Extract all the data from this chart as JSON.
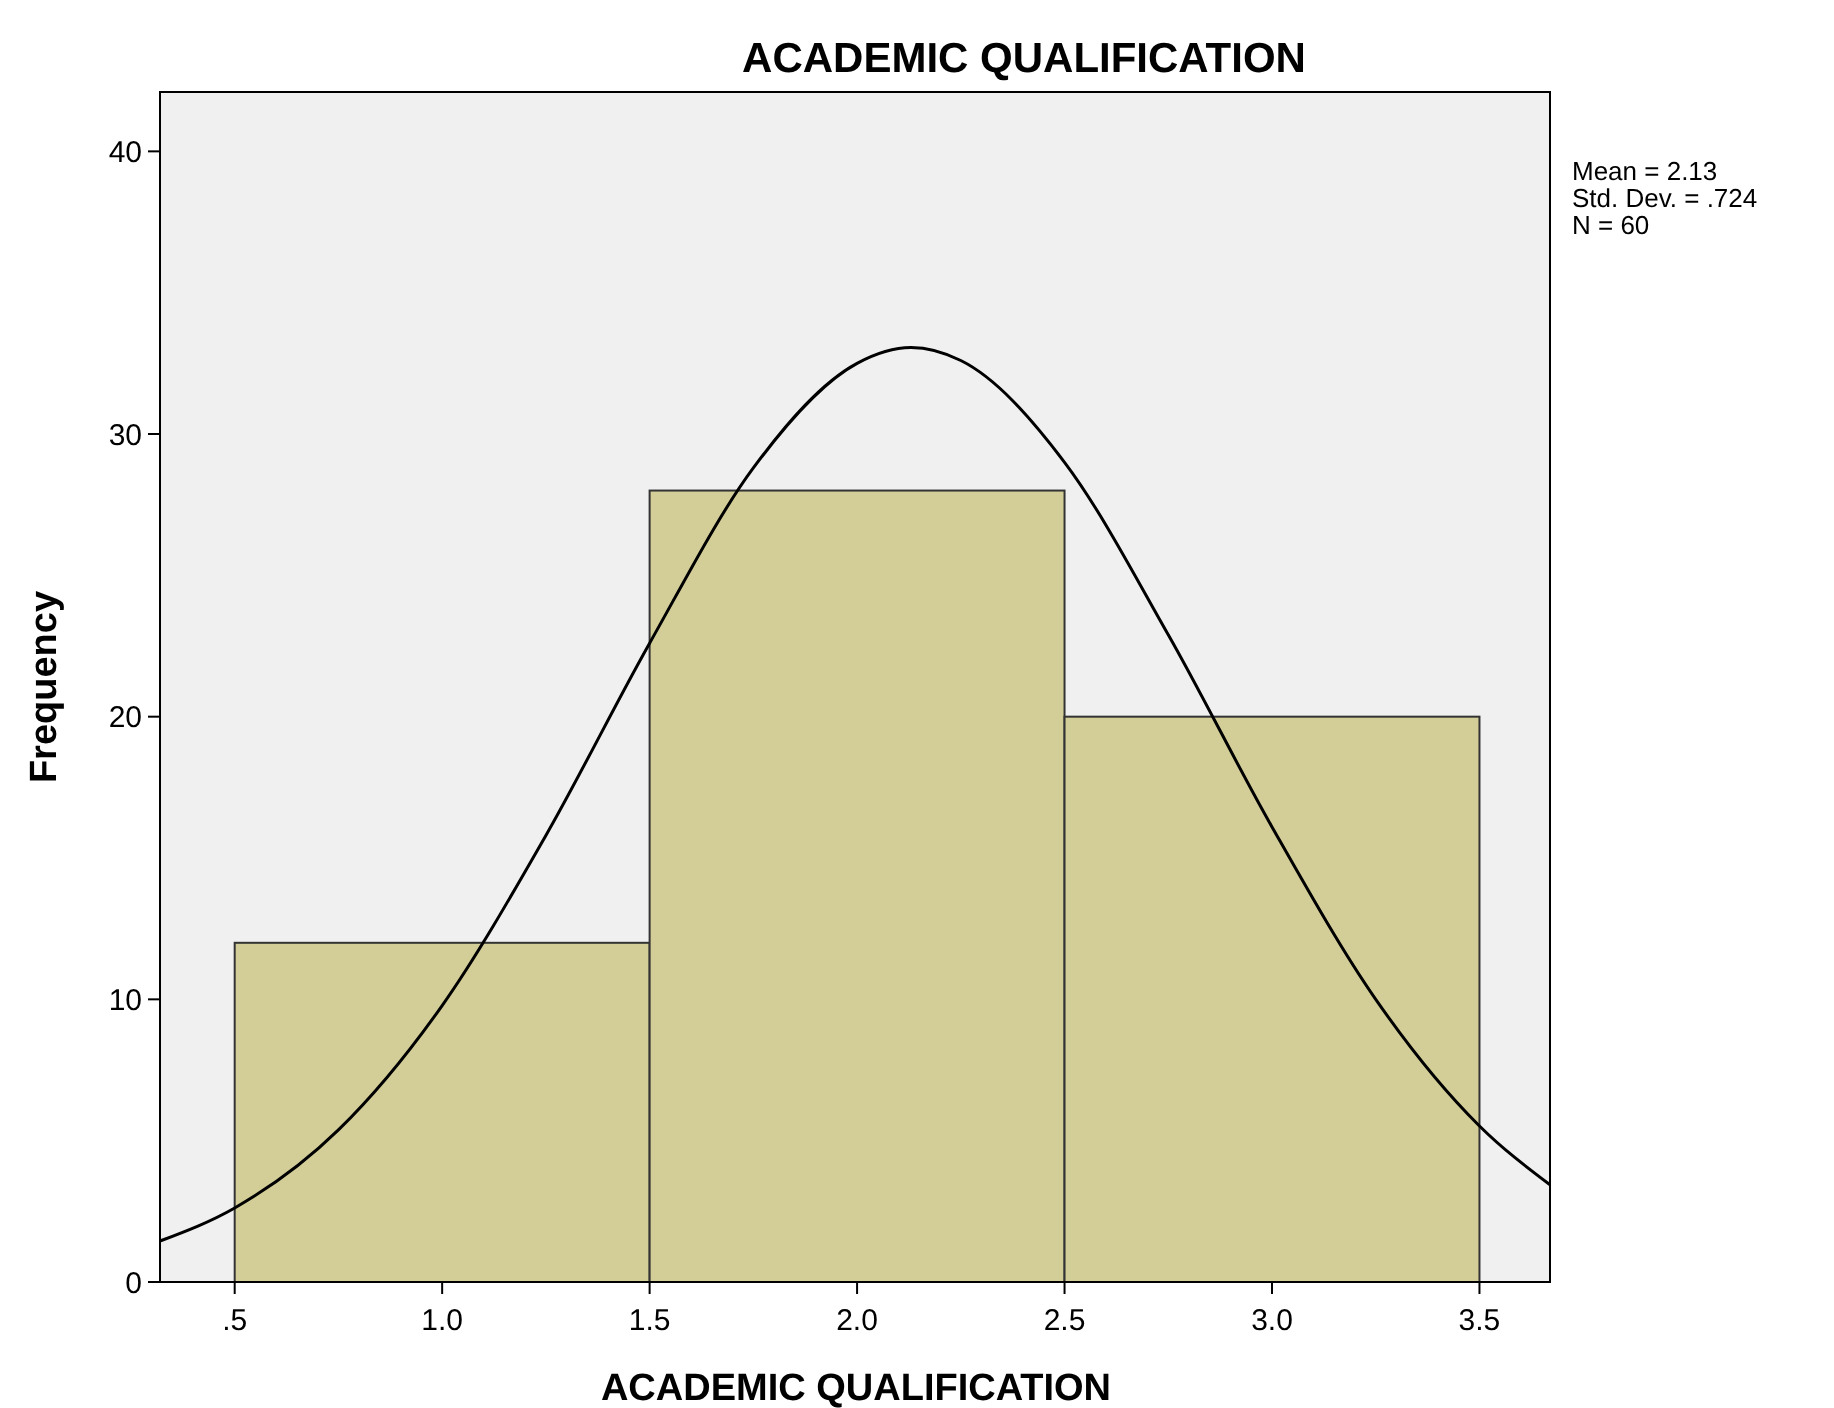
{
  "chart_data": {
    "type": "histogram",
    "title": "ACADEMIC QUALIFICATION",
    "xlabel": "ACADEMIC QUALIFICATION",
    "ylabel": "Frequency",
    "bins": [
      0.5,
      1.5,
      2.5,
      3.5
    ],
    "values": [
      12,
      28,
      20
    ],
    "color": "#d3ce98",
    "series": [
      {
        "type": "line",
        "color": "#000000",
        "x": [
          0.32,
          0.5,
          0.75,
          1.0,
          1.25,
          1.5,
          1.75,
          2.0,
          2.13,
          2.25,
          2.5,
          2.75,
          3.0,
          3.25,
          3.5,
          3.67
        ],
        "values": [
          1.45,
          2.62,
          5.38,
          9.78,
          15.8,
          22.6,
          28.8,
          32.5,
          33.06,
          32.6,
          29.0,
          22.9,
          16.1,
          10.0,
          5.52,
          3.44
        ]
      }
    ],
    "xlim": [
      0.32,
      3.67
    ],
    "ylim": [
      0,
      42.1
    ],
    "xticks": [
      {
        "value": 0.5,
        "label": ".5"
      },
      {
        "value": 1.0,
        "label": "1.0"
      },
      {
        "value": 1.5,
        "label": "1.5"
      },
      {
        "value": 2.0,
        "label": "2.0"
      },
      {
        "value": 2.5,
        "label": "2.5"
      },
      {
        "value": 3.0,
        "label": "3.0"
      },
      {
        "value": 3.5,
        "label": "3.5"
      }
    ],
    "yticks": [
      0,
      10,
      20,
      30,
      40
    ],
    "grid": false,
    "marker": "none",
    "line_style": "solid",
    "annotations": [
      "Mean = 2.13",
      "Std. Dev. = .724",
      "N = 60"
    ]
  }
}
